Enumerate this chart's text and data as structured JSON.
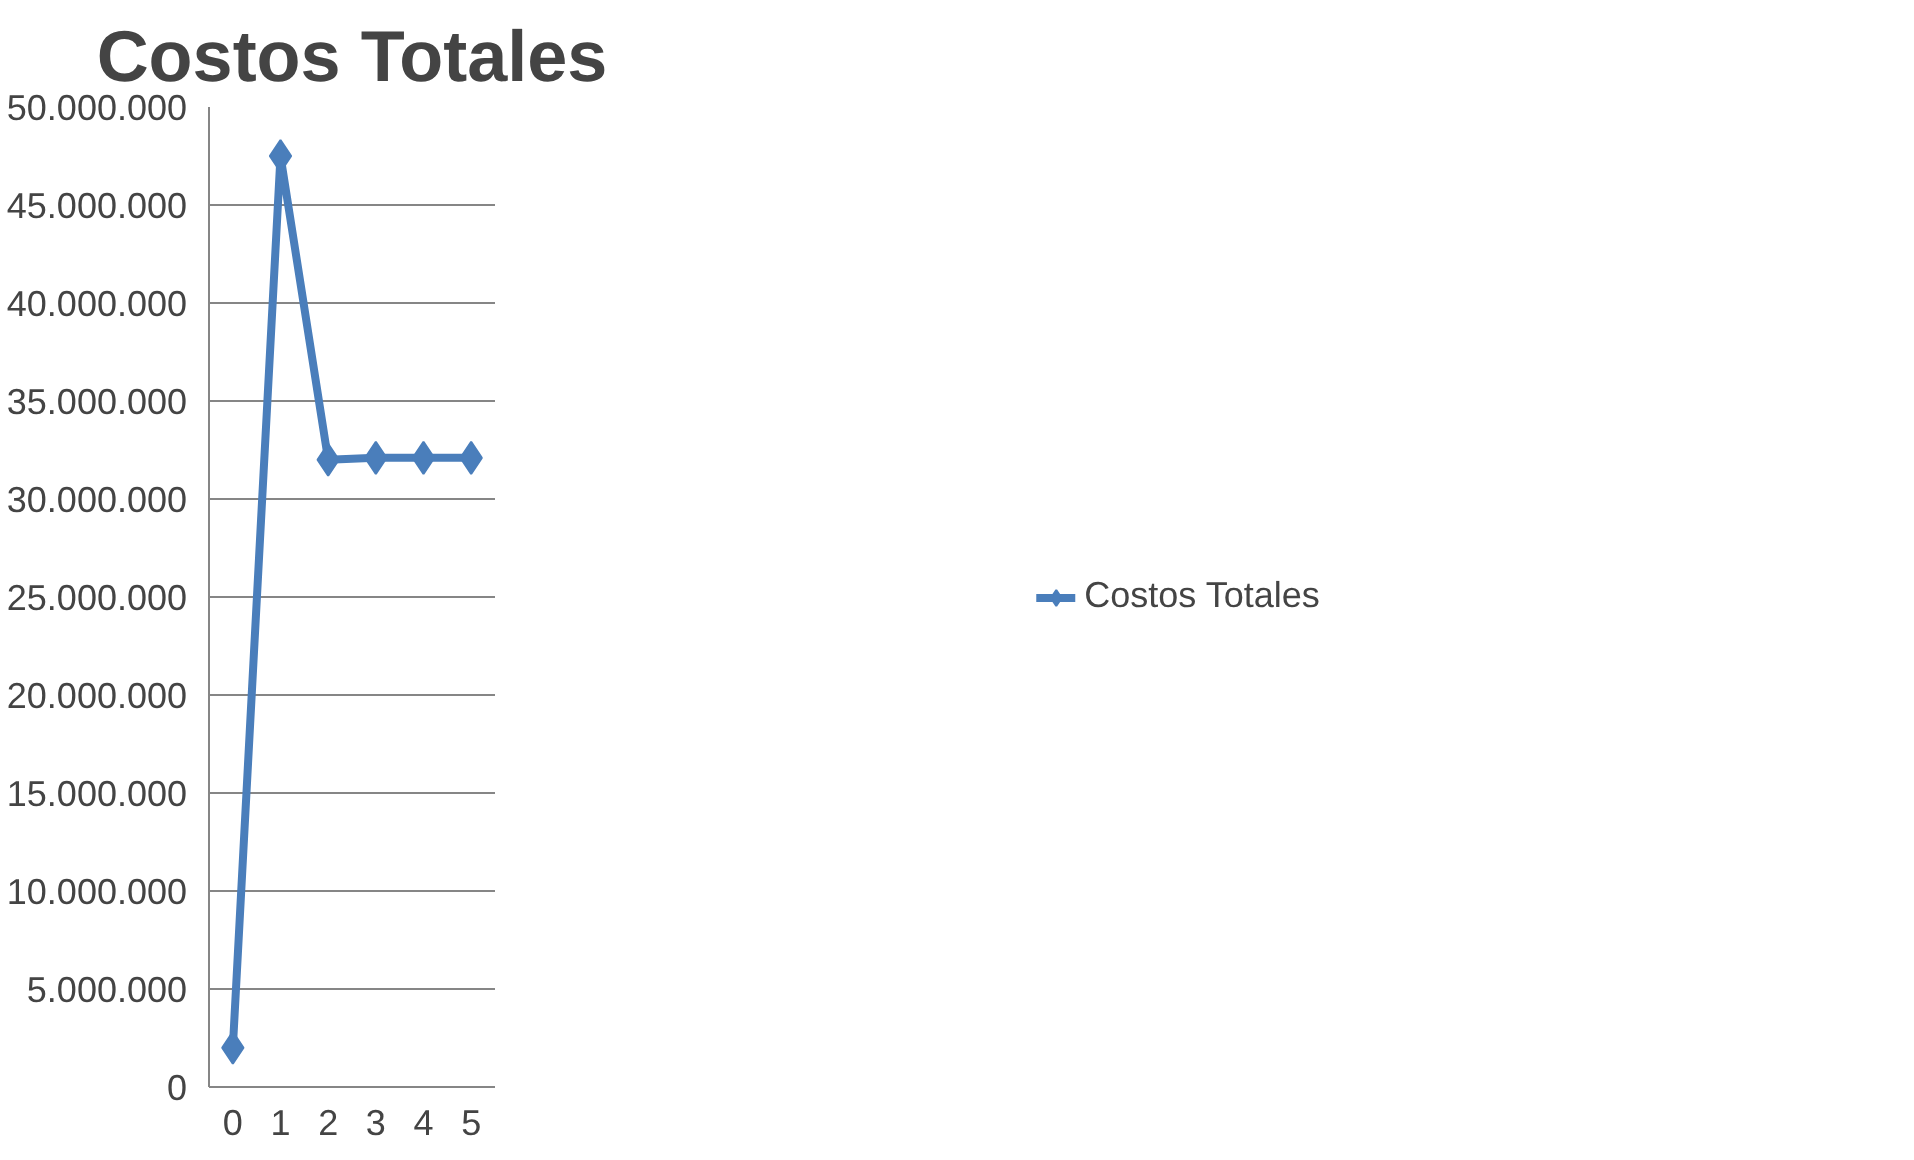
{
  "chart_data": {
    "type": "line",
    "title": "Costos Totales",
    "categories": [
      "0",
      "1",
      "2",
      "3",
      "4",
      "5"
    ],
    "series": [
      {
        "name": "Costos Totales",
        "color": "#4a7ebb",
        "values": [
          2000000,
          47500000,
          32000000,
          32100000,
          32100000,
          32100000
        ]
      }
    ],
    "ylim": [
      0,
      50000000
    ],
    "yticks": [
      0,
      {
        "value": 5000000,
        "label": "5.000.000"
      },
      {
        "value": 10000000,
        "label": "10.000.000"
      },
      {
        "value": 15000000,
        "label": "15.000.000"
      },
      {
        "value": 20000000,
        "label": "20.000.000"
      },
      {
        "value": 25000000,
        "label": "25.000.000"
      },
      {
        "value": 30000000,
        "label": "30.000.000"
      },
      {
        "value": 35000000,
        "label": "35.000.000"
      },
      {
        "value": 40000000,
        "label": "40.000.000"
      },
      {
        "value": 45000000,
        "label": "45.000.000"
      },
      {
        "value": 50000000,
        "label": "50.000.000"
      }
    ],
    "grid": "y",
    "legend": "right",
    "marker": "diamond",
    "line_style": "solid"
  }
}
